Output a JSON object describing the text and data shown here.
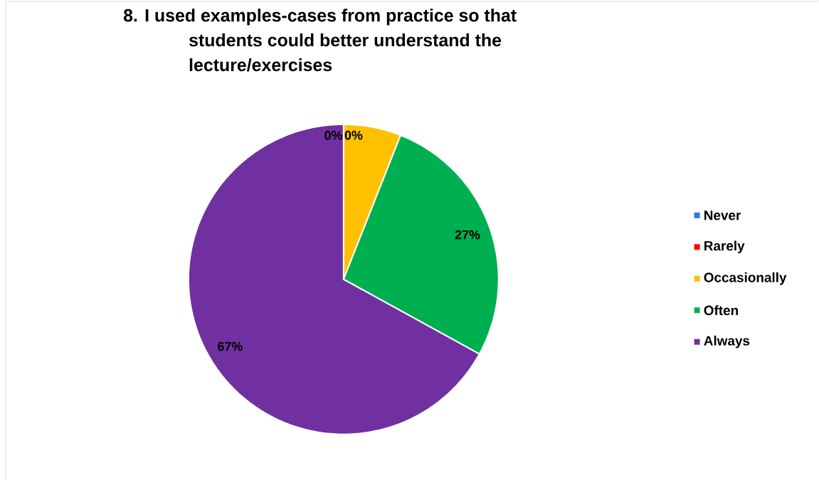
{
  "chart_data": {
    "type": "pie",
    "title": "8. I used examples-cases from practice so that students could better understand the lecture/exercises",
    "categories": [
      "Never",
      "Rarely",
      "Occasionally",
      "Often",
      "Always"
    ],
    "values": [
      0,
      0,
      6,
      27,
      67
    ],
    "colors": [
      "#2e75f0",
      "#ff0000",
      "#ffc000",
      "#00b050",
      "#7030a0"
    ],
    "value_labels": [
      "0%",
      "0%",
      null,
      "27%",
      "67%"
    ],
    "legend": "right"
  }
}
